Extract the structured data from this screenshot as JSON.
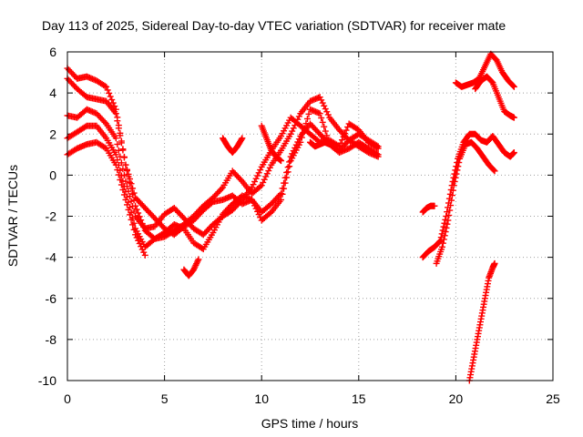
{
  "chart_data": {
    "type": "scatter",
    "title": "Day 113 of 2025, Sidereal Day-to-day VTEC variation (SDTVAR) for receiver mate",
    "xlabel": "GPS time / hours",
    "ylabel": "SDTVAR / TECUs",
    "xlim": [
      0,
      25
    ],
    "ylim": [
      -10,
      6
    ],
    "xticks": [
      0,
      5,
      10,
      15,
      20,
      25
    ],
    "yticks": [
      -10,
      -8,
      -6,
      -4,
      -2,
      0,
      2,
      4,
      6
    ],
    "grid": true,
    "marker": "plus",
    "color": "#ff0000",
    "series": [
      {
        "x": [
          0,
          0.5,
          1,
          1.5,
          2,
          2.5,
          3,
          3.5,
          4,
          4.5,
          5,
          5.5,
          6,
          6.5,
          7,
          7.5,
          8,
          8.5,
          9,
          9.5,
          10,
          10.5,
          11,
          11.5,
          12,
          12.5,
          13,
          13.5,
          14,
          14.5,
          15,
          15.5,
          16
        ],
        "y": [
          5.2,
          4.7,
          4.8,
          4.6,
          4.3,
          3.2,
          0.5,
          -1.5,
          -2.7,
          -3.1,
          -3.0,
          -2.7,
          -2.4,
          -2.0,
          -1.5,
          -1.1,
          -0.6,
          0.2,
          -0.3,
          -0.9,
          -0.5,
          0.5,
          1.2,
          2.0,
          3.0,
          3.6,
          3.8,
          2.8,
          2.2,
          1.7,
          1.4,
          1.1,
          0.9
        ]
      },
      {
        "x": [
          0,
          0.5,
          1,
          1.5,
          2,
          2.5,
          3,
          3.5,
          4,
          4.5,
          5,
          5.5,
          6,
          6.5,
          7,
          7.5,
          8,
          8.5,
          9,
          9.5,
          10,
          10.5,
          11,
          11.5,
          12,
          12.5,
          13,
          13.5,
          14,
          14.5,
          15,
          15.5,
          16
        ],
        "y": [
          4.7,
          4.2,
          3.8,
          3.7,
          3.6,
          3.0,
          0.5,
          -1.1,
          -1.6,
          -2.1,
          -2.6,
          -2.9,
          -2.5,
          -2.2,
          -1.7,
          -1.3,
          -1.2,
          -1.0,
          -1.4,
          -1.2,
          -1.8,
          -1.4,
          -0.9,
          0.9,
          1.9,
          2.5,
          2.0,
          1.5,
          1.2,
          1.7,
          2.0,
          1.7,
          1.4
        ]
      },
      {
        "x": [
          0,
          0.5,
          1,
          1.5,
          2,
          2.5,
          3,
          3.5,
          4,
          4.5,
          5,
          5.5,
          6,
          6.5,
          7,
          7.5,
          8,
          8.5,
          9,
          9.5,
          10,
          10.5,
          11,
          11.5,
          12,
          12.5,
          13,
          13.5,
          14,
          14.5,
          15,
          15.5,
          16
        ],
        "y": [
          2.9,
          2.8,
          3.2,
          3.0,
          2.5,
          1.8,
          -0.3,
          -2.0,
          -2.6,
          -2.5,
          -1.9,
          -1.6,
          -2.1,
          -2.6,
          -2.9,
          -2.4,
          -2.0,
          -1.7,
          -1.2,
          -0.6,
          0.4,
          1.2,
          1.9,
          2.8,
          2.4,
          2.0,
          1.6,
          1.7,
          1.4,
          2.5,
          2.2,
          1.6,
          1.3
        ]
      },
      {
        "x": [
          0,
          0.5,
          1,
          1.5,
          2,
          2.5,
          3,
          3.5,
          4,
          4.5,
          5,
          5.5,
          6,
          6.5,
          7,
          7.5,
          8,
          8.5,
          9,
          9.5,
          10,
          10.5,
          11,
          11.5,
          12,
          12.5,
          13,
          13.5,
          14,
          14.5,
          15,
          15.5,
          16
        ],
        "y": [
          1.8,
          2.1,
          2.4,
          2.4,
          1.8,
          1.0,
          -0.8,
          -2.6,
          -3.5,
          -3.1,
          -2.8,
          -2.4,
          -2.6,
          -3.3,
          -3.6,
          -2.8,
          -1.9,
          -1.4,
          -1.0,
          -1.2,
          -2.2,
          -1.8,
          -1.2,
          0.7,
          1.6,
          3.2,
          3.0,
          1.5,
          1.1,
          1.3,
          1.6,
          1.3,
          1.0
        ]
      },
      {
        "x": [
          0,
          0.5,
          1,
          1.5,
          2,
          2.5,
          3,
          3.5,
          4
        ],
        "y": [
          1.0,
          1.3,
          1.5,
          1.6,
          1.3,
          0.5,
          -1.2,
          -2.9,
          -3.9
        ]
      },
      {
        "x": [
          6,
          6.25,
          6.5,
          6.75
        ],
        "y": [
          -4.6,
          -4.9,
          -4.6,
          -4.1
        ]
      },
      {
        "x": [
          8.0,
          8.25,
          8.5,
          8.75,
          9.0
        ],
        "y": [
          1.8,
          1.4,
          1.1,
          1.4,
          1.8
        ]
      },
      {
        "x": [
          10.0,
          10.25,
          10.5,
          10.75,
          11.0
        ],
        "y": [
          2.4,
          1.8,
          1.2,
          0.9,
          0.7
        ]
      },
      {
        "x": [
          12.5,
          12.75,
          13.0,
          13.25,
          13.5
        ],
        "y": [
          1.6,
          1.4,
          1.5,
          1.6,
          1.5
        ]
      },
      {
        "x": [
          18.3,
          18.5,
          18.7,
          18.9
        ],
        "y": [
          -1.8,
          -1.6,
          -1.5,
          -1.5
        ]
      },
      {
        "x": [
          18.3,
          18.6,
          18.9,
          19.2,
          19.5,
          19.8,
          20.1,
          20.4,
          20.7,
          21.0,
          21.3,
          21.6,
          21.9,
          22.2,
          22.5,
          22.8,
          23.0
        ],
        "y": [
          -4.0,
          -3.7,
          -3.5,
          -3.2,
          -2.0,
          -0.5,
          0.8,
          1.6,
          2.0,
          2.0,
          1.7,
          1.6,
          1.9,
          1.5,
          1.1,
          0.9,
          1.1
        ]
      },
      {
        "x": [
          19.0,
          19.3,
          19.6,
          19.9,
          20.2,
          20.5,
          20.8,
          21.1,
          21.4,
          21.7,
          22.0
        ],
        "y": [
          -4.3,
          -3.5,
          -2.2,
          -0.5,
          0.8,
          1.5,
          1.6,
          1.3,
          0.9,
          0.5,
          0.2
        ]
      },
      {
        "x": [
          20.0,
          20.3,
          20.6,
          20.9,
          21.2,
          21.5,
          21.8,
          22.1,
          22.4,
          22.7,
          23.0
        ],
        "y": [
          4.5,
          4.3,
          4.4,
          4.5,
          4.7,
          5.3,
          5.9,
          5.6,
          5.0,
          4.6,
          4.3
        ]
      },
      {
        "x": [
          21.0,
          21.3,
          21.6,
          21.9,
          22.2,
          22.5,
          22.8,
          23.0
        ],
        "y": [
          4.2,
          4.6,
          4.8,
          4.5,
          3.8,
          3.1,
          2.9,
          2.8
        ]
      },
      {
        "x": [
          20.7,
          20.9,
          21.1,
          21.3,
          21.5,
          21.7,
          21.9,
          22.0
        ],
        "y": [
          -10.0,
          -9.0,
          -8.0,
          -7.0,
          -6.0,
          -5.0,
          -4.5,
          -4.3
        ]
      }
    ]
  }
}
